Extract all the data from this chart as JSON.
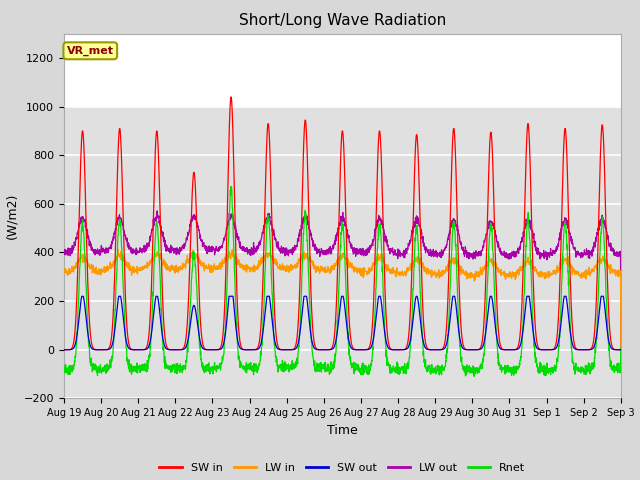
{
  "title": "Short/Long Wave Radiation",
  "xlabel": "Time",
  "ylabel": "(W/m2)",
  "ylim": [
    -200,
    1300
  ],
  "yticks": [
    -200,
    0,
    200,
    400,
    600,
    800,
    1000,
    1200
  ],
  "fig_bg_color": "#d8d8d8",
  "plot_bg_color": "#ffffff",
  "shaded_bg_color": "#e0e0e0",
  "grid_color": "#cccccc",
  "annotation_text": "VR_met",
  "annotation_box_color": "#ffff99",
  "annotation_border_color": "#999900",
  "num_days": 15,
  "day_labels": [
    "Aug 19",
    "Aug 20",
    "Aug 21",
    "Aug 22",
    "Aug 23",
    "Aug 24",
    "Aug 25",
    "Aug 26",
    "Aug 27",
    "Aug 28",
    "Aug 29",
    "Aug 30",
    "Aug 31",
    "Sep 1",
    "Sep 2",
    "Sep 3"
  ],
  "colors": {
    "SW_in": "#ff0000",
    "LW_in": "#ff9900",
    "SW_out": "#0000dd",
    "LW_out": "#aa00aa",
    "Rnet": "#00dd00"
  },
  "legend_labels": [
    "SW in",
    "LW in",
    "SW out",
    "LW out",
    "Rnet"
  ],
  "legend_colors": [
    "#ff0000",
    "#ff9900",
    "#0000dd",
    "#aa00aa",
    "#00dd00"
  ]
}
